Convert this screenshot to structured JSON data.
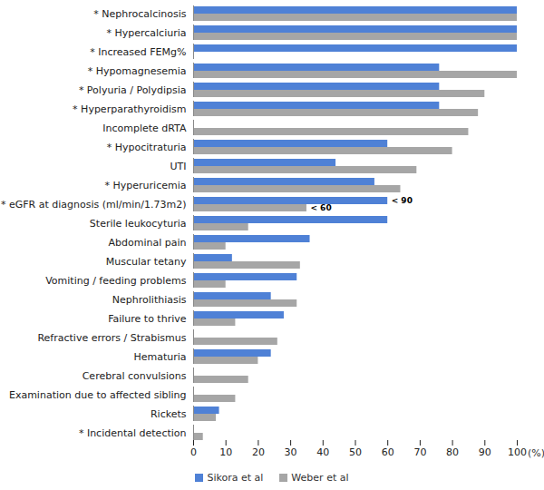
{
  "chart_data": {
    "type": "bar",
    "orientation": "horizontal",
    "categories": [
      "* Nephrocalcinosis",
      "* Hypercalciuria",
      "* Increased FEMg%",
      "* Hypomagnesemia",
      "* Polyuria / Polydipsia",
      "* Hyperparathyroidism",
      "Incomplete dRTA",
      "* Hypocitraturia",
      "UTI",
      "* Hyperuricemia",
      "* eGFR at diagnosis (ml/min/1.73m2)",
      "Sterile leukocyturia",
      "Abdominal pain",
      "Muscular tetany",
      "Vomiting / feeding problems",
      "Nephrolithiasis",
      "Failure to thrive",
      "Refractive errors / Strabismus",
      "Hematuria",
      "Cerebral convulsions",
      "Examination due to affected sibling",
      "Rickets",
      "* Incidental detection"
    ],
    "series": [
      {
        "name": "Sikora et al",
        "color": "#4f81d6",
        "values": [
          100,
          100,
          100,
          76,
          76,
          76,
          null,
          60,
          44,
          56,
          60,
          60,
          36,
          12,
          32,
          24,
          28,
          null,
          24,
          null,
          null,
          8,
          null
        ]
      },
      {
        "name": "Weber et al",
        "color": "#a6a6a6",
        "values": [
          100,
          100,
          null,
          100,
          90,
          88,
          85,
          80,
          69,
          64,
          35,
          17,
          10,
          33,
          10,
          32,
          13,
          26,
          20,
          17,
          13,
          7,
          3
        ]
      }
    ],
    "annotations": [
      {
        "category": "* eGFR at diagnosis (ml/min/1.73m2)",
        "series": "Sikora et al",
        "text": "< 90"
      },
      {
        "category": "* eGFR at diagnosis (ml/min/1.73m2)",
        "series": "Weber et al",
        "text": "< 60"
      }
    ],
    "x_label": "(%)",
    "xlim": [
      0,
      100
    ],
    "xticks": [
      0,
      10,
      20,
      30,
      40,
      50,
      60,
      70,
      80,
      90,
      100
    ],
    "grid": false,
    "legend": "bottom"
  }
}
